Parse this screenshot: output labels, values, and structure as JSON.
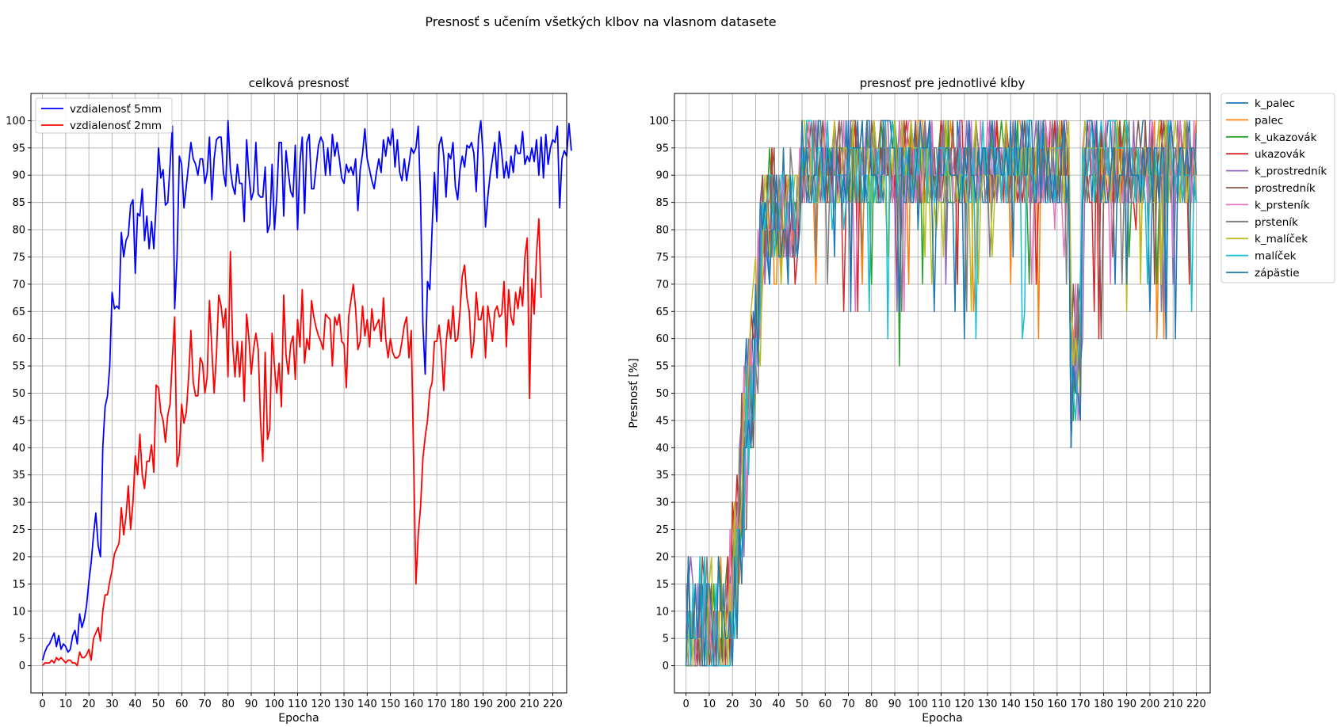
{
  "figure": {
    "suptitle": "Presnosť s učením všetkých klbov na vlasnom datasete"
  },
  "chart_data": [
    {
      "type": "line",
      "title": "celková presnosť",
      "xlabel": "Epocha",
      "ylabel": "",
      "xlim": [
        -5,
        226
      ],
      "ylim": [
        -5,
        105
      ],
      "xticks": [
        0,
        10,
        20,
        30,
        40,
        50,
        60,
        70,
        80,
        90,
        100,
        110,
        120,
        130,
        140,
        150,
        160,
        170,
        180,
        190,
        200,
        210,
        220
      ],
      "yticks": [
        0,
        5,
        10,
        15,
        20,
        25,
        30,
        35,
        40,
        45,
        50,
        55,
        60,
        65,
        70,
        75,
        80,
        85,
        90,
        95,
        100
      ],
      "grid": true,
      "legend_position": "upper-left",
      "series": [
        {
          "name": "vzdialenosť 5mm",
          "color": "#0000ff",
          "x_step": 1,
          "values": [
            1.0,
            2.5,
            3.5,
            4.0,
            5.0,
            6.0,
            3.5,
            5.5,
            3.0,
            4.0,
            3.5,
            2.5,
            3.0,
            5.5,
            6.5,
            4.0,
            9.5,
            7.0,
            8.5,
            11.0,
            15.5,
            19.0,
            24.0,
            28.0,
            22.0,
            20.0,
            40.0,
            47.5,
            49.5,
            55.0,
            68.5,
            65.5,
            66.0,
            65.5,
            79.5,
            75.0,
            78.0,
            79.0,
            84.5,
            85.5,
            72.0,
            83.0,
            82.5,
            87.5,
            78.0,
            82.5,
            76.5,
            81.5,
            76.5,
            84.5,
            95.0,
            89.5,
            91.0,
            84.5,
            85.0,
            92.0,
            99.0,
            65.5,
            75.0,
            93.5,
            92.0,
            84.0,
            88.0,
            92.0,
            96.0,
            93.0,
            92.0,
            90.0,
            93.0,
            93.0,
            88.5,
            90.5,
            97.0,
            85.5,
            93.0,
            96.5,
            97.0,
            97.0,
            90.5,
            88.0,
            100.0,
            91.0,
            88.0,
            86.5,
            92.0,
            88.5,
            88.5,
            81.5,
            96.5,
            90.0,
            85.5,
            87.0,
            96.0,
            86.5,
            86.0,
            86.0,
            91.5,
            79.5,
            81.0,
            92.0,
            80.0,
            86.0,
            96.0,
            96.0,
            82.5,
            94.5,
            90.5,
            87.0,
            86.0,
            95.5,
            80.0,
            92.5,
            97.0,
            83.0,
            96.0,
            97.5,
            87.5,
            87.5,
            91.5,
            95.5,
            97.0,
            96.0,
            90.0,
            95.0,
            90.0,
            97.5,
            93.5,
            96.0,
            93.0,
            89.5,
            88.5,
            92.0,
            90.5,
            91.5,
            90.0,
            93.0,
            83.5,
            91.0,
            94.0,
            98.5,
            93.0,
            91.0,
            89.0,
            87.5,
            90.5,
            93.0,
            90.5,
            96.5,
            93.5,
            97.0,
            95.5,
            98.5,
            91.5,
            96.5,
            90.5,
            89.0,
            93.0,
            89.0,
            92.0,
            95.0,
            94.0,
            95.0,
            99.0,
            86.0,
            62.5,
            53.5,
            70.5,
            69.0,
            80.5,
            90.5,
            81.5,
            95.5,
            97.0,
            93.5,
            86.0,
            94.0,
            93.0,
            96.0,
            88.0,
            85.5,
            91.0,
            93.5,
            91.5,
            95.5,
            95.0,
            96.0,
            94.0,
            87.0,
            97.0,
            100.0,
            93.5,
            80.5,
            86.0,
            90.0,
            93.0,
            96.0,
            89.5,
            98.0,
            94.0,
            89.5,
            92.5,
            89.5,
            93.5,
            90.5,
            95.5,
            94.0,
            94.0,
            98.0,
            92.0,
            93.5,
            92.5,
            95.0,
            92.5,
            96.5,
            90.0,
            97.0,
            89.5,
            97.5,
            92.0,
            95.0,
            96.5,
            96.0,
            99.0,
            84.0,
            93.0,
            94.5,
            93.5,
            99.5,
            94.5
          ]
        },
        {
          "name": "vzdialenosť 2mm",
          "color": "#ff0000",
          "x_step": 1,
          "values": [
            0.0,
            0.5,
            0.5,
            0.5,
            1.0,
            0.5,
            1.5,
            1.0,
            1.5,
            1.0,
            0.5,
            1.0,
            1.0,
            0.5,
            0.5,
            0.0,
            2.5,
            1.5,
            1.5,
            2.0,
            3.0,
            1.0,
            5.0,
            6.0,
            7.0,
            4.5,
            10.0,
            13.0,
            13.0,
            15.5,
            17.5,
            20.5,
            21.5,
            22.5,
            29.0,
            24.0,
            27.5,
            33.0,
            25.0,
            30.0,
            38.5,
            35.0,
            42.5,
            35.0,
            32.5,
            37.5,
            37.5,
            40.5,
            35.5,
            51.5,
            51.0,
            46.5,
            45.0,
            41.0,
            46.0,
            48.0,
            56.5,
            64.0,
            36.5,
            39.0,
            48.0,
            44.5,
            46.5,
            53.0,
            61.5,
            52.0,
            49.5,
            49.5,
            56.5,
            55.5,
            50.0,
            53.0,
            67.0,
            58.0,
            50.0,
            57.0,
            68.0,
            66.0,
            62.0,
            65.5,
            53.0,
            76.0,
            59.0,
            53.0,
            59.5,
            53.0,
            59.5,
            48.5,
            64.5,
            60.0,
            53.5,
            58.0,
            61.0,
            58.0,
            45.0,
            37.5,
            57.5,
            41.5,
            43.5,
            61.0,
            55.0,
            50.0,
            55.5,
            47.5,
            68.0,
            57.0,
            53.5,
            59.0,
            60.5,
            52.5,
            63.5,
            58.5,
            69.0,
            55.5,
            60.0,
            58.0,
            67.0,
            64.0,
            62.0,
            60.5,
            59.5,
            58.0,
            64.5,
            64.0,
            63.5,
            55.0,
            64.0,
            62.5,
            64.5,
            59.5,
            59.0,
            51.0,
            64.0,
            67.0,
            70.0,
            65.5,
            58.0,
            59.5,
            66.0,
            60.5,
            63.5,
            58.5,
            65.5,
            61.5,
            62.5,
            63.5,
            59.5,
            67.5,
            60.0,
            56.5,
            60.0,
            57.5,
            56.5,
            56.5,
            57.0,
            59.5,
            62.5,
            64.0,
            56.5,
            61.5,
            38.0,
            15.0,
            24.0,
            29.0,
            38.0,
            42.0,
            45.0,
            50.5,
            52.0,
            59.5,
            59.5,
            62.5,
            58.0,
            50.5,
            59.0,
            63.5,
            60.0,
            66.0,
            59.5,
            60.0,
            65.0,
            71.5,
            73.5,
            67.5,
            65.0,
            56.5,
            59.5,
            68.5,
            63.5,
            63.5,
            66.0,
            56.5,
            66.0,
            63.0,
            59.5,
            65.0,
            66.0,
            64.0,
            64.5,
            70.5,
            58.5,
            69.0,
            64.0,
            62.5,
            68.5,
            65.5,
            69.5,
            66.0,
            75.0,
            78.5,
            49.0,
            71.0,
            64.5,
            75.5,
            82.0,
            67.5
          ]
        }
      ]
    },
    {
      "type": "line",
      "title": "presnosť pre jednotlivé kĺby",
      "xlabel": "Epocha",
      "ylabel": "Presnosť [%]",
      "xlim": [
        -5,
        226
      ],
      "ylim": [
        -5,
        105
      ],
      "xticks": [
        0,
        10,
        20,
        30,
        40,
        50,
        60,
        70,
        80,
        90,
        100,
        110,
        120,
        130,
        140,
        150,
        160,
        170,
        180,
        190,
        200,
        210,
        220
      ],
      "yticks": [
        0,
        5,
        10,
        15,
        20,
        25,
        30,
        35,
        40,
        45,
        50,
        55,
        60,
        65,
        70,
        75,
        80,
        85,
        90,
        95,
        100
      ],
      "grid": true,
      "legend_position": "outside-upper-right",
      "series": [
        {
          "name": "k_palec",
          "color": "#1f77b4"
        },
        {
          "name": "palec",
          "color": "#ff7f0e"
        },
        {
          "name": "k_ukazovák",
          "color": "#2ca02c"
        },
        {
          "name": "ukazovák",
          "color": "#d62728"
        },
        {
          "name": "k_prostredník",
          "color": "#9467bd"
        },
        {
          "name": "prostredník",
          "color": "#8c564b"
        },
        {
          "name": "k_prsteník",
          "color": "#e377c2"
        },
        {
          "name": "prsteník",
          "color": "#7f7f7f"
        },
        {
          "name": "k_malíček",
          "color": "#bcbd22"
        },
        {
          "name": "malíček",
          "color": "#17becf"
        },
        {
          "name": "zápästie",
          "color": "#1f77b4"
        }
      ]
    }
  ]
}
